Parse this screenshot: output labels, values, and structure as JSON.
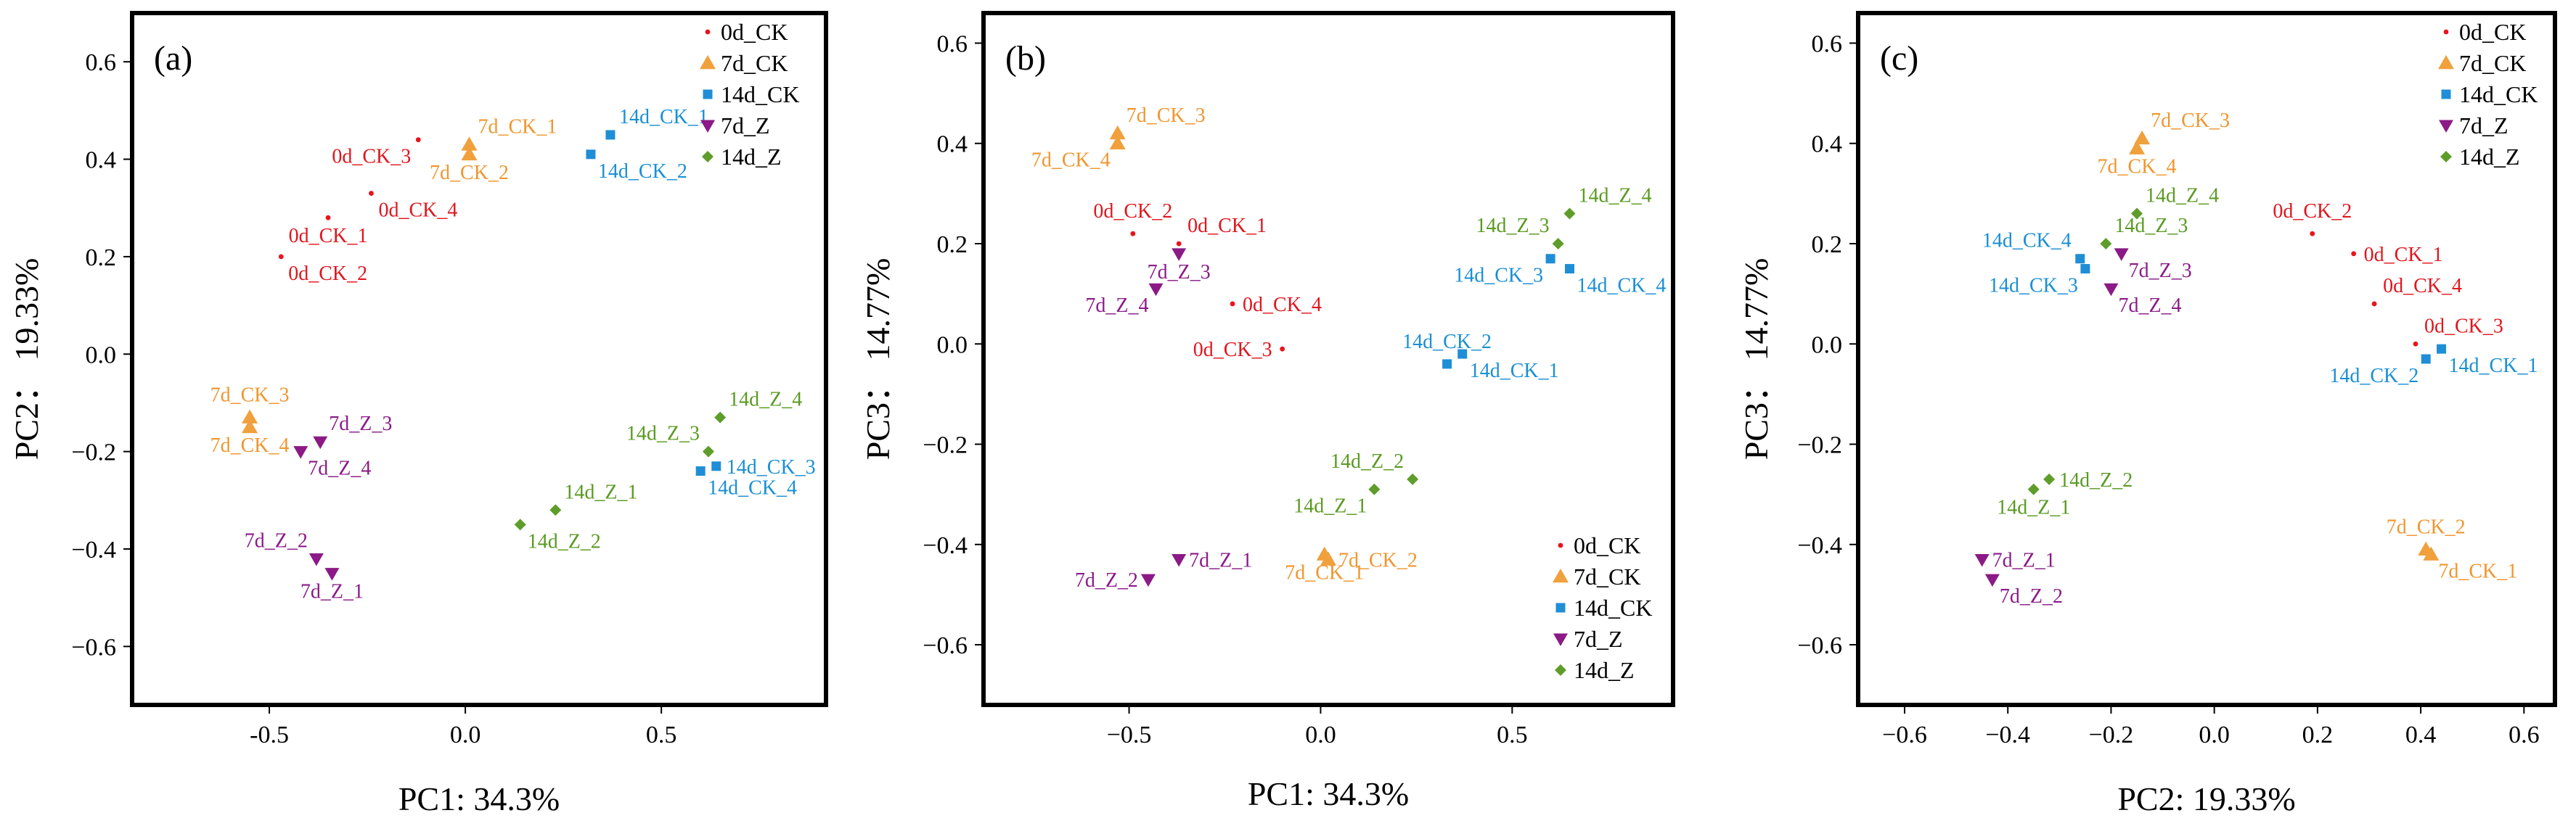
{
  "figure_title": "",
  "chart_data": [
    {
      "type": "scatter",
      "panel": "(a)",
      "xlabel": "PC1: 34.3%",
      "ylabel": "PC2： 19.33%",
      "xlim": [
        -0.85,
        0.92
      ],
      "ylim": [
        -0.72,
        0.7
      ],
      "xticks": [
        -0.5,
        0.0,
        0.5
      ],
      "xtick_labels": [
        "-0.5",
        "0.0",
        "0.5"
      ],
      "yticks": [
        -0.6,
        -0.4,
        -0.2,
        0.0,
        0.2,
        0.4,
        0.6
      ],
      "ytick_labels": [
        "−0.6",
        "−0.4",
        "−0.2",
        "0.0",
        "0.2",
        "0.4",
        "0.6"
      ],
      "legend_position": "top-right",
      "legend": [
        "0d_CK",
        "7d_CK",
        "14d_CK",
        "7d_Z",
        "14d_Z"
      ],
      "series": [
        {
          "name": "0d_CK",
          "points": [
            {
              "label": "0d_CK_1",
              "x": -0.35,
              "y": 0.28,
              "lpos": "below"
            },
            {
              "label": "0d_CK_2",
              "x": -0.47,
              "y": 0.2,
              "lpos": "below-right"
            },
            {
              "label": "0d_CK_3",
              "x": -0.12,
              "y": 0.44,
              "lpos": "below-left"
            },
            {
              "label": "0d_CK_4",
              "x": -0.24,
              "y": 0.33,
              "lpos": "below-right"
            }
          ]
        },
        {
          "name": "7d_CK",
          "points": [
            {
              "label": "7d_CK_1",
              "x": 0.01,
              "y": 0.43,
              "lpos": "above-right"
            },
            {
              "label": "7d_CK_2",
              "x": 0.01,
              "y": 0.41,
              "lpos": "below"
            },
            {
              "label": "7d_CK_3",
              "x": -0.55,
              "y": -0.13,
              "lpos": "above"
            },
            {
              "label": "7d_CK_4",
              "x": -0.55,
              "y": -0.15,
              "lpos": "below"
            }
          ]
        },
        {
          "name": "14d_CK",
          "points": [
            {
              "label": "14d_CK_1",
              "x": 0.37,
              "y": 0.45,
              "lpos": "above-right"
            },
            {
              "label": "14d_CK_2",
              "x": 0.32,
              "y": 0.41,
              "lpos": "below-right"
            },
            {
              "label": "14d_CK_3",
              "x": 0.64,
              "y": -0.23,
              "lpos": "right"
            },
            {
              "label": "14d_CK_4",
              "x": 0.6,
              "y": -0.24,
              "lpos": "below-right"
            }
          ]
        },
        {
          "name": "7d_Z",
          "points": [
            {
              "label": "7d_Z_1",
              "x": -0.34,
              "y": -0.45,
              "lpos": "below"
            },
            {
              "label": "7d_Z_2",
              "x": -0.38,
              "y": -0.42,
              "lpos": "above-left"
            },
            {
              "label": "7d_Z_3",
              "x": -0.37,
              "y": -0.18,
              "lpos": "above-right"
            },
            {
              "label": "7d_Z_4",
              "x": -0.42,
              "y": -0.2,
              "lpos": "below-right"
            }
          ]
        },
        {
          "name": "14d_Z",
          "points": [
            {
              "label": "14d_Z_1",
              "x": 0.23,
              "y": -0.32,
              "lpos": "above-right"
            },
            {
              "label": "14d_Z_2",
              "x": 0.14,
              "y": -0.35,
              "lpos": "below-right"
            },
            {
              "label": "14d_Z_3",
              "x": 0.62,
              "y": -0.2,
              "lpos": "above-left"
            },
            {
              "label": "14d_Z_4",
              "x": 0.65,
              "y": -0.13,
              "lpos": "above-right"
            }
          ]
        }
      ]
    },
    {
      "type": "scatter",
      "panel": "(b)",
      "xlabel": "PC1: 34.3%",
      "ylabel": "PC3： 14.77%",
      "xlim": [
        -0.88,
        0.92
      ],
      "ylim": [
        -0.72,
        0.66
      ],
      "xticks": [
        -0.5,
        0.0,
        0.5
      ],
      "xtick_labels": [
        "−0.5",
        "0.0",
        "0.5"
      ],
      "yticks": [
        -0.6,
        -0.4,
        -0.2,
        0.0,
        0.2,
        0.4,
        0.6
      ],
      "ytick_labels": [
        "−0.6",
        "−0.4",
        "−0.2",
        "0.0",
        "0.2",
        "0.4",
        "0.6"
      ],
      "legend_position": "bottom-right",
      "legend": [
        "0d_CK",
        "7d_CK",
        "14d_CK",
        "7d_Z",
        "14d_Z"
      ],
      "series": [
        {
          "name": "0d_CK",
          "points": [
            {
              "label": "0d_CK_1",
              "x": -0.37,
              "y": 0.2,
              "lpos": "above-right"
            },
            {
              "label": "0d_CK_2",
              "x": -0.49,
              "y": 0.22,
              "lpos": "above"
            },
            {
              "label": "0d_CK_3",
              "x": -0.1,
              "y": -0.01,
              "lpos": "left"
            },
            {
              "label": "0d_CK_4",
              "x": -0.23,
              "y": 0.08,
              "lpos": "right"
            }
          ]
        },
        {
          "name": "7d_CK",
          "points": [
            {
              "label": "7d_CK_1",
              "x": 0.01,
              "y": -0.42,
              "lpos": "below"
            },
            {
              "label": "7d_CK_2",
              "x": 0.02,
              "y": -0.43,
              "lpos": "right"
            },
            {
              "label": "7d_CK_3",
              "x": -0.53,
              "y": 0.42,
              "lpos": "above-right"
            },
            {
              "label": "7d_CK_4",
              "x": -0.53,
              "y": 0.4,
              "lpos": "below-left"
            }
          ]
        },
        {
          "name": "14d_CK",
          "points": [
            {
              "label": "14d_CK_1",
              "x": 0.37,
              "y": -0.02,
              "lpos": "below-right"
            },
            {
              "label": "14d_CK_2",
              "x": 0.33,
              "y": -0.04,
              "lpos": "above"
            },
            {
              "label": "14d_CK_3",
              "x": 0.6,
              "y": 0.17,
              "lpos": "below-left"
            },
            {
              "label": "14d_CK_4",
              "x": 0.65,
              "y": 0.15,
              "lpos": "below-right"
            }
          ]
        },
        {
          "name": "7d_Z",
          "points": [
            {
              "label": "7d_Z_1",
              "x": -0.37,
              "y": -0.43,
              "lpos": "right"
            },
            {
              "label": "7d_Z_2",
              "x": -0.45,
              "y": -0.47,
              "lpos": "left"
            },
            {
              "label": "7d_Z_3",
              "x": -0.37,
              "y": 0.18,
              "lpos": "below"
            },
            {
              "label": "7d_Z_4",
              "x": -0.43,
              "y": 0.11,
              "lpos": "below-left"
            }
          ]
        },
        {
          "name": "14d_Z",
          "points": [
            {
              "label": "14d_Z_1",
              "x": 0.14,
              "y": -0.29,
              "lpos": "below-left"
            },
            {
              "label": "14d_Z_2",
              "x": 0.24,
              "y": -0.27,
              "lpos": "above-left"
            },
            {
              "label": "14d_Z_3",
              "x": 0.62,
              "y": 0.2,
              "lpos": "above-left"
            },
            {
              "label": "14d_Z_4",
              "x": 0.65,
              "y": 0.26,
              "lpos": "above-right"
            }
          ]
        }
      ]
    },
    {
      "type": "scatter",
      "panel": "(c)",
      "xlabel": "PC2: 19.33%",
      "ylabel": "PC3： 14.77%",
      "xlim": [
        -0.69,
        0.66
      ],
      "ylim": [
        -0.72,
        0.66
      ],
      "xticks": [
        -0.6,
        -0.4,
        -0.2,
        0.0,
        0.2,
        0.4,
        0.6
      ],
      "xtick_labels": [
        "−0.6",
        "−0.4",
        "−0.2",
        "0.0",
        "0.2",
        "0.4",
        "0.6"
      ],
      "yticks": [
        -0.6,
        -0.4,
        -0.2,
        0.0,
        0.2,
        0.4,
        0.6
      ],
      "ytick_labels": [
        "−0.6",
        "−0.4",
        "−0.2",
        "0.0",
        "0.2",
        "0.4",
        "0.6"
      ],
      "legend_position": "top-right",
      "legend": [
        "0d_CK",
        "7d_CK",
        "14d_CK",
        "7d_Z",
        "14d_Z"
      ],
      "series": [
        {
          "name": "0d_CK",
          "points": [
            {
              "label": "0d_CK_1",
              "x": 0.27,
              "y": 0.18,
              "lpos": "right"
            },
            {
              "label": "0d_CK_2",
              "x": 0.19,
              "y": 0.22,
              "lpos": "above"
            },
            {
              "label": "0d_CK_3",
              "x": 0.39,
              "y": 0.0,
              "lpos": "above-right"
            },
            {
              "label": "0d_CK_4",
              "x": 0.31,
              "y": 0.08,
              "lpos": "above-right"
            }
          ]
        },
        {
          "name": "7d_CK",
          "points": [
            {
              "label": "7d_CK_1",
              "x": 0.42,
              "y": -0.42,
              "lpos": "below-right"
            },
            {
              "label": "7d_CK_2",
              "x": 0.41,
              "y": -0.41,
              "lpos": "above"
            },
            {
              "label": "7d_CK_3",
              "x": -0.14,
              "y": 0.41,
              "lpos": "above-right"
            },
            {
              "label": "7d_CK_4",
              "x": -0.15,
              "y": 0.39,
              "lpos": "below"
            }
          ]
        },
        {
          "name": "14d_CK",
          "points": [
            {
              "label": "14d_CK_1",
              "x": 0.44,
              "y": -0.01,
              "lpos": "below-right"
            },
            {
              "label": "14d_CK_2",
              "x": 0.41,
              "y": -0.03,
              "lpos": "below-left"
            },
            {
              "label": "14d_CK_3",
              "x": -0.25,
              "y": 0.15,
              "lpos": "below-left"
            },
            {
              "label": "14d_CK_4",
              "x": -0.26,
              "y": 0.17,
              "lpos": "above-left"
            }
          ]
        },
        {
          "name": "7d_Z",
          "points": [
            {
              "label": "7d_Z_1",
              "x": -0.45,
              "y": -0.43,
              "lpos": "right"
            },
            {
              "label": "7d_Z_2",
              "x": -0.43,
              "y": -0.47,
              "lpos": "below-right"
            },
            {
              "label": "7d_Z_3",
              "x": -0.18,
              "y": 0.18,
              "lpos": "below-right"
            },
            {
              "label": "7d_Z_4",
              "x": -0.2,
              "y": 0.11,
              "lpos": "below-right"
            }
          ]
        },
        {
          "name": "14d_Z",
          "points": [
            {
              "label": "14d_Z_1",
              "x": -0.35,
              "y": -0.29,
              "lpos": "below"
            },
            {
              "label": "14d_Z_2",
              "x": -0.32,
              "y": -0.27,
              "lpos": "right"
            },
            {
              "label": "14d_Z_3",
              "x": -0.21,
              "y": 0.2,
              "lpos": "above-right"
            },
            {
              "label": "14d_Z_4",
              "x": -0.15,
              "y": 0.26,
              "lpos": "above-right"
            }
          ]
        }
      ]
    }
  ],
  "series_style": {
    "0d_CK": {
      "marker": "dot-icon",
      "color": "#e8141c"
    },
    "7d_CK": {
      "marker": "triangle-up-icon",
      "color": "#f0a03c"
    },
    "14d_CK": {
      "marker": "square-icon",
      "color": "#1f8ed6"
    },
    "7d_Z": {
      "marker": "triangle-down-icon",
      "color": "#8b1a86"
    },
    "14d_Z": {
      "marker": "diamond-icon",
      "color": "#5f9d2a"
    }
  },
  "label_colors": {
    "0d_CK": "#e0161e",
    "7d_CK": "#f0962e",
    "14d_CK": "#1a8fd4",
    "7d_Z": "#8a1b88",
    "14d_Z": "#5a9a22"
  }
}
